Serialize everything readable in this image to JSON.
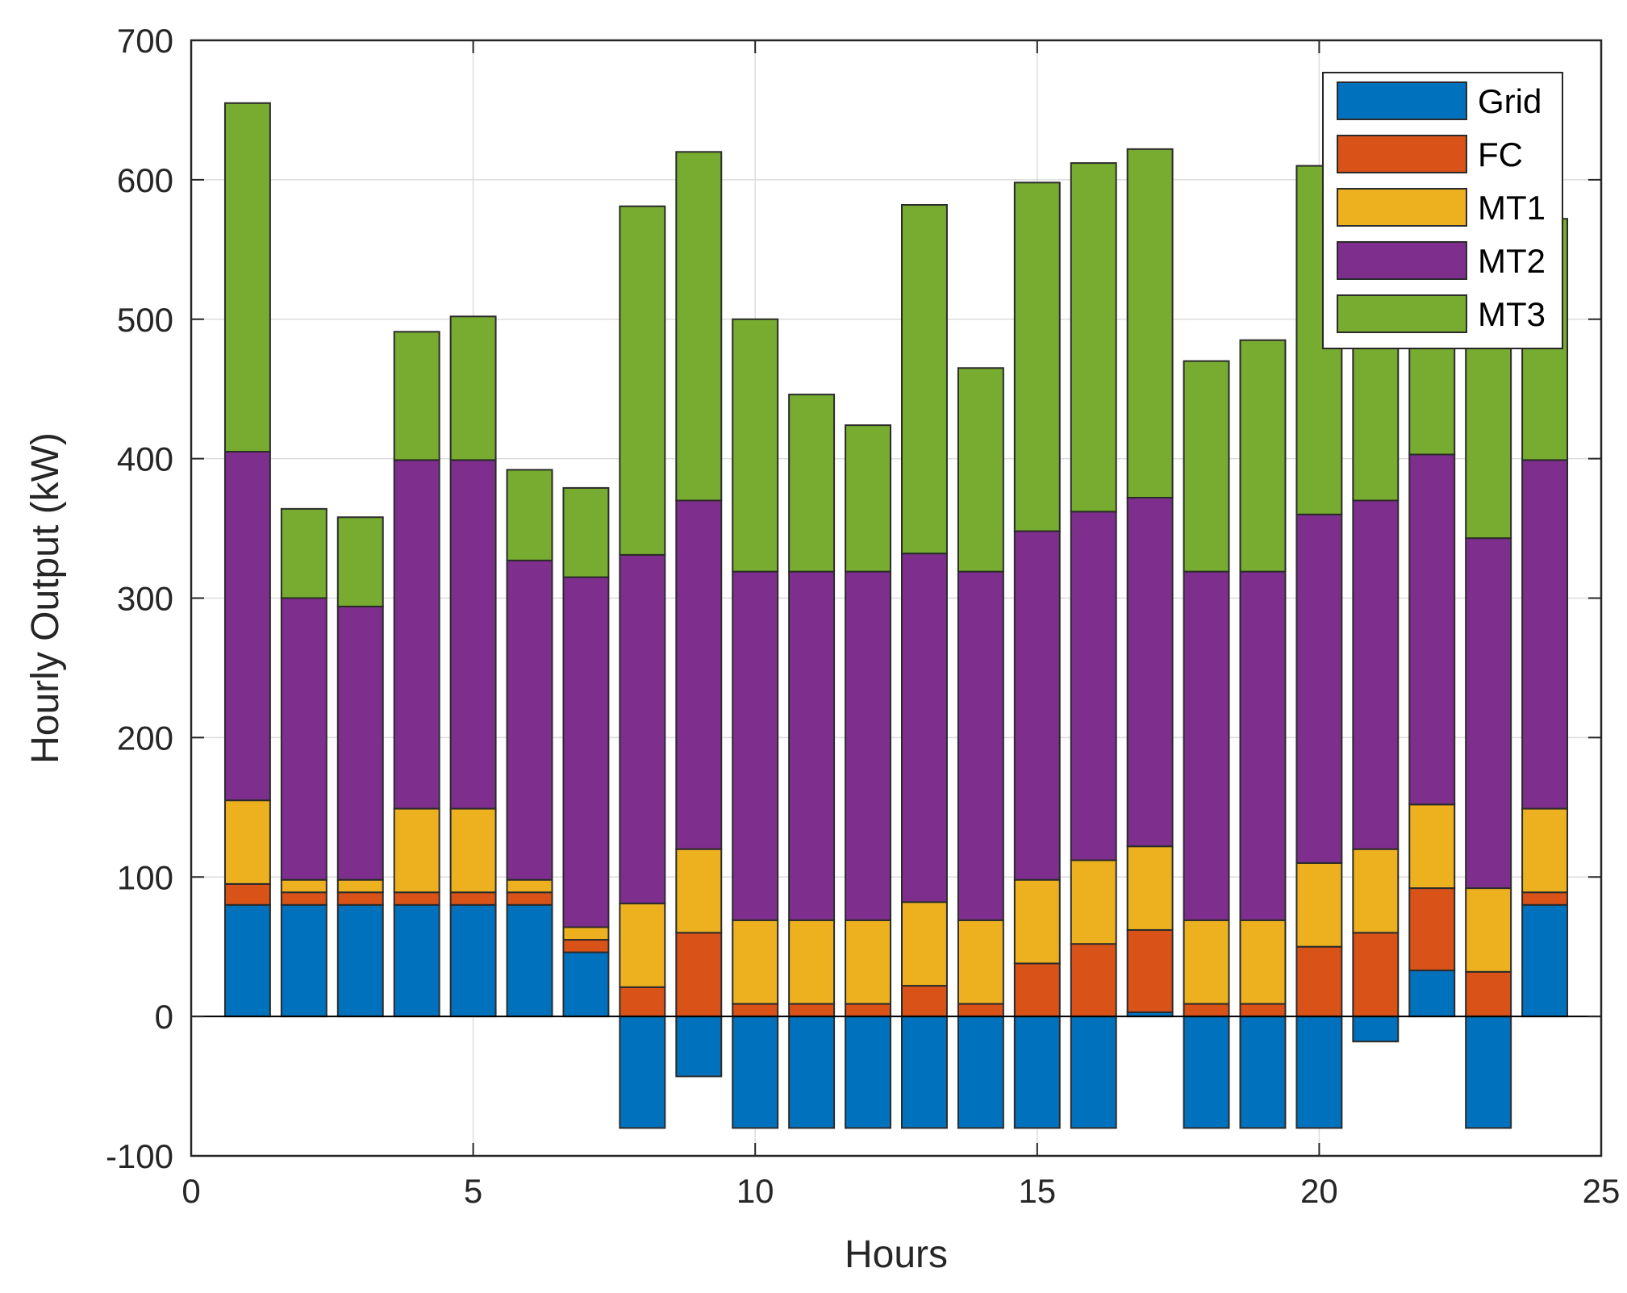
{
  "chart_data": {
    "type": "bar",
    "stacked": true,
    "xlabel": "Hours",
    "ylabel": "Hourly Output (kW)",
    "xlim": [
      0,
      25
    ],
    "ylim": [
      -100,
      700
    ],
    "xticks": [
      0,
      5,
      10,
      15,
      20,
      25
    ],
    "yticks": [
      -100,
      0,
      100,
      200,
      300,
      400,
      500,
      600,
      700
    ],
    "grid": true,
    "legend_position": "top-right",
    "x": [
      1,
      2,
      3,
      4,
      5,
      6,
      7,
      8,
      9,
      10,
      11,
      12,
      13,
      14,
      15,
      16,
      17,
      18,
      19,
      20,
      21,
      22,
      23,
      24
    ],
    "series": [
      {
        "name": "Grid",
        "color": "#0072BD",
        "values": [
          80,
          80,
          80,
          80,
          80,
          80,
          46,
          -80,
          -43,
          -80,
          -80,
          -80,
          -80,
          -80,
          -80,
          -80,
          3,
          -80,
          -80,
          -80,
          -18,
          33,
          -80,
          80
        ]
      },
      {
        "name": "FC",
        "color": "#D95319",
        "values": [
          15,
          9,
          9,
          9,
          9,
          9,
          9,
          21,
          60,
          9,
          9,
          9,
          22,
          9,
          38,
          52,
          59,
          9,
          9,
          50,
          60,
          59,
          32,
          9
        ]
      },
      {
        "name": "MT1",
        "color": "#EDB120",
        "values": [
          60,
          9,
          9,
          60,
          60,
          9,
          9,
          60,
          60,
          60,
          60,
          60,
          60,
          60,
          60,
          60,
          60,
          60,
          60,
          60,
          60,
          60,
          60,
          60
        ]
      },
      {
        "name": "MT2",
        "color": "#7E2F8E",
        "values": [
          250,
          202,
          196,
          250,
          250,
          229,
          251,
          250,
          250,
          250,
          250,
          250,
          250,
          250,
          250,
          250,
          250,
          250,
          250,
          250,
          250,
          251,
          251,
          250
        ]
      },
      {
        "name": "MT3",
        "color": "#77AC30",
        "values": [
          250,
          64,
          64,
          92,
          103,
          65,
          64,
          250,
          250,
          181,
          127,
          105,
          250,
          146,
          250,
          250,
          250,
          151,
          166,
          250,
          243,
          188,
          220,
          173
        ]
      }
    ]
  }
}
